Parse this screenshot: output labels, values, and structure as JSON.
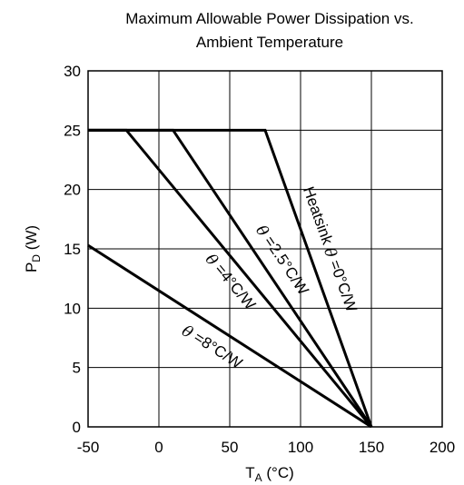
{
  "chart_data": {
    "type": "line",
    "title": [
      "Maximum Allowable Power Dissipation vs.",
      "Ambient Temperature"
    ],
    "xlabel": {
      "main": "T",
      "sub": "A",
      "unit": " (°C)"
    },
    "ylabel": {
      "main": "P",
      "sub": "D",
      "unit": " (W)"
    },
    "xlim": [
      -50,
      200
    ],
    "ylim": [
      0,
      30
    ],
    "xticks": [
      -50,
      0,
      50,
      100,
      150,
      200
    ],
    "yticks": [
      0,
      5,
      10,
      15,
      20,
      25,
      30
    ],
    "grid": true,
    "series": [
      {
        "name": "Heatsink θ =0°C/W",
        "label_prefix": "Heatsink ",
        "theta": "θ",
        "label_suffix": " =0°C/W",
        "x": [
          -50,
          75,
          150
        ],
        "y": [
          25,
          25,
          0
        ]
      },
      {
        "name": "θ =2.5°C/W",
        "label_prefix": "",
        "theta": "θ",
        "label_suffix": " =2.5°C/W",
        "x": [
          -50,
          10,
          150
        ],
        "y": [
          25,
          25,
          0
        ]
      },
      {
        "name": "θ =4°C/W",
        "label_prefix": "",
        "theta": "θ",
        "label_suffix": " =4°C/W",
        "x": [
          -50,
          -23,
          150
        ],
        "y": [
          25,
          25,
          0
        ]
      },
      {
        "name": "θ =8°C/W",
        "label_prefix": "",
        "theta": "θ",
        "label_suffix": " =8°C/W",
        "x": [
          -50,
          150
        ],
        "y": [
          15.3,
          0
        ]
      }
    ]
  }
}
